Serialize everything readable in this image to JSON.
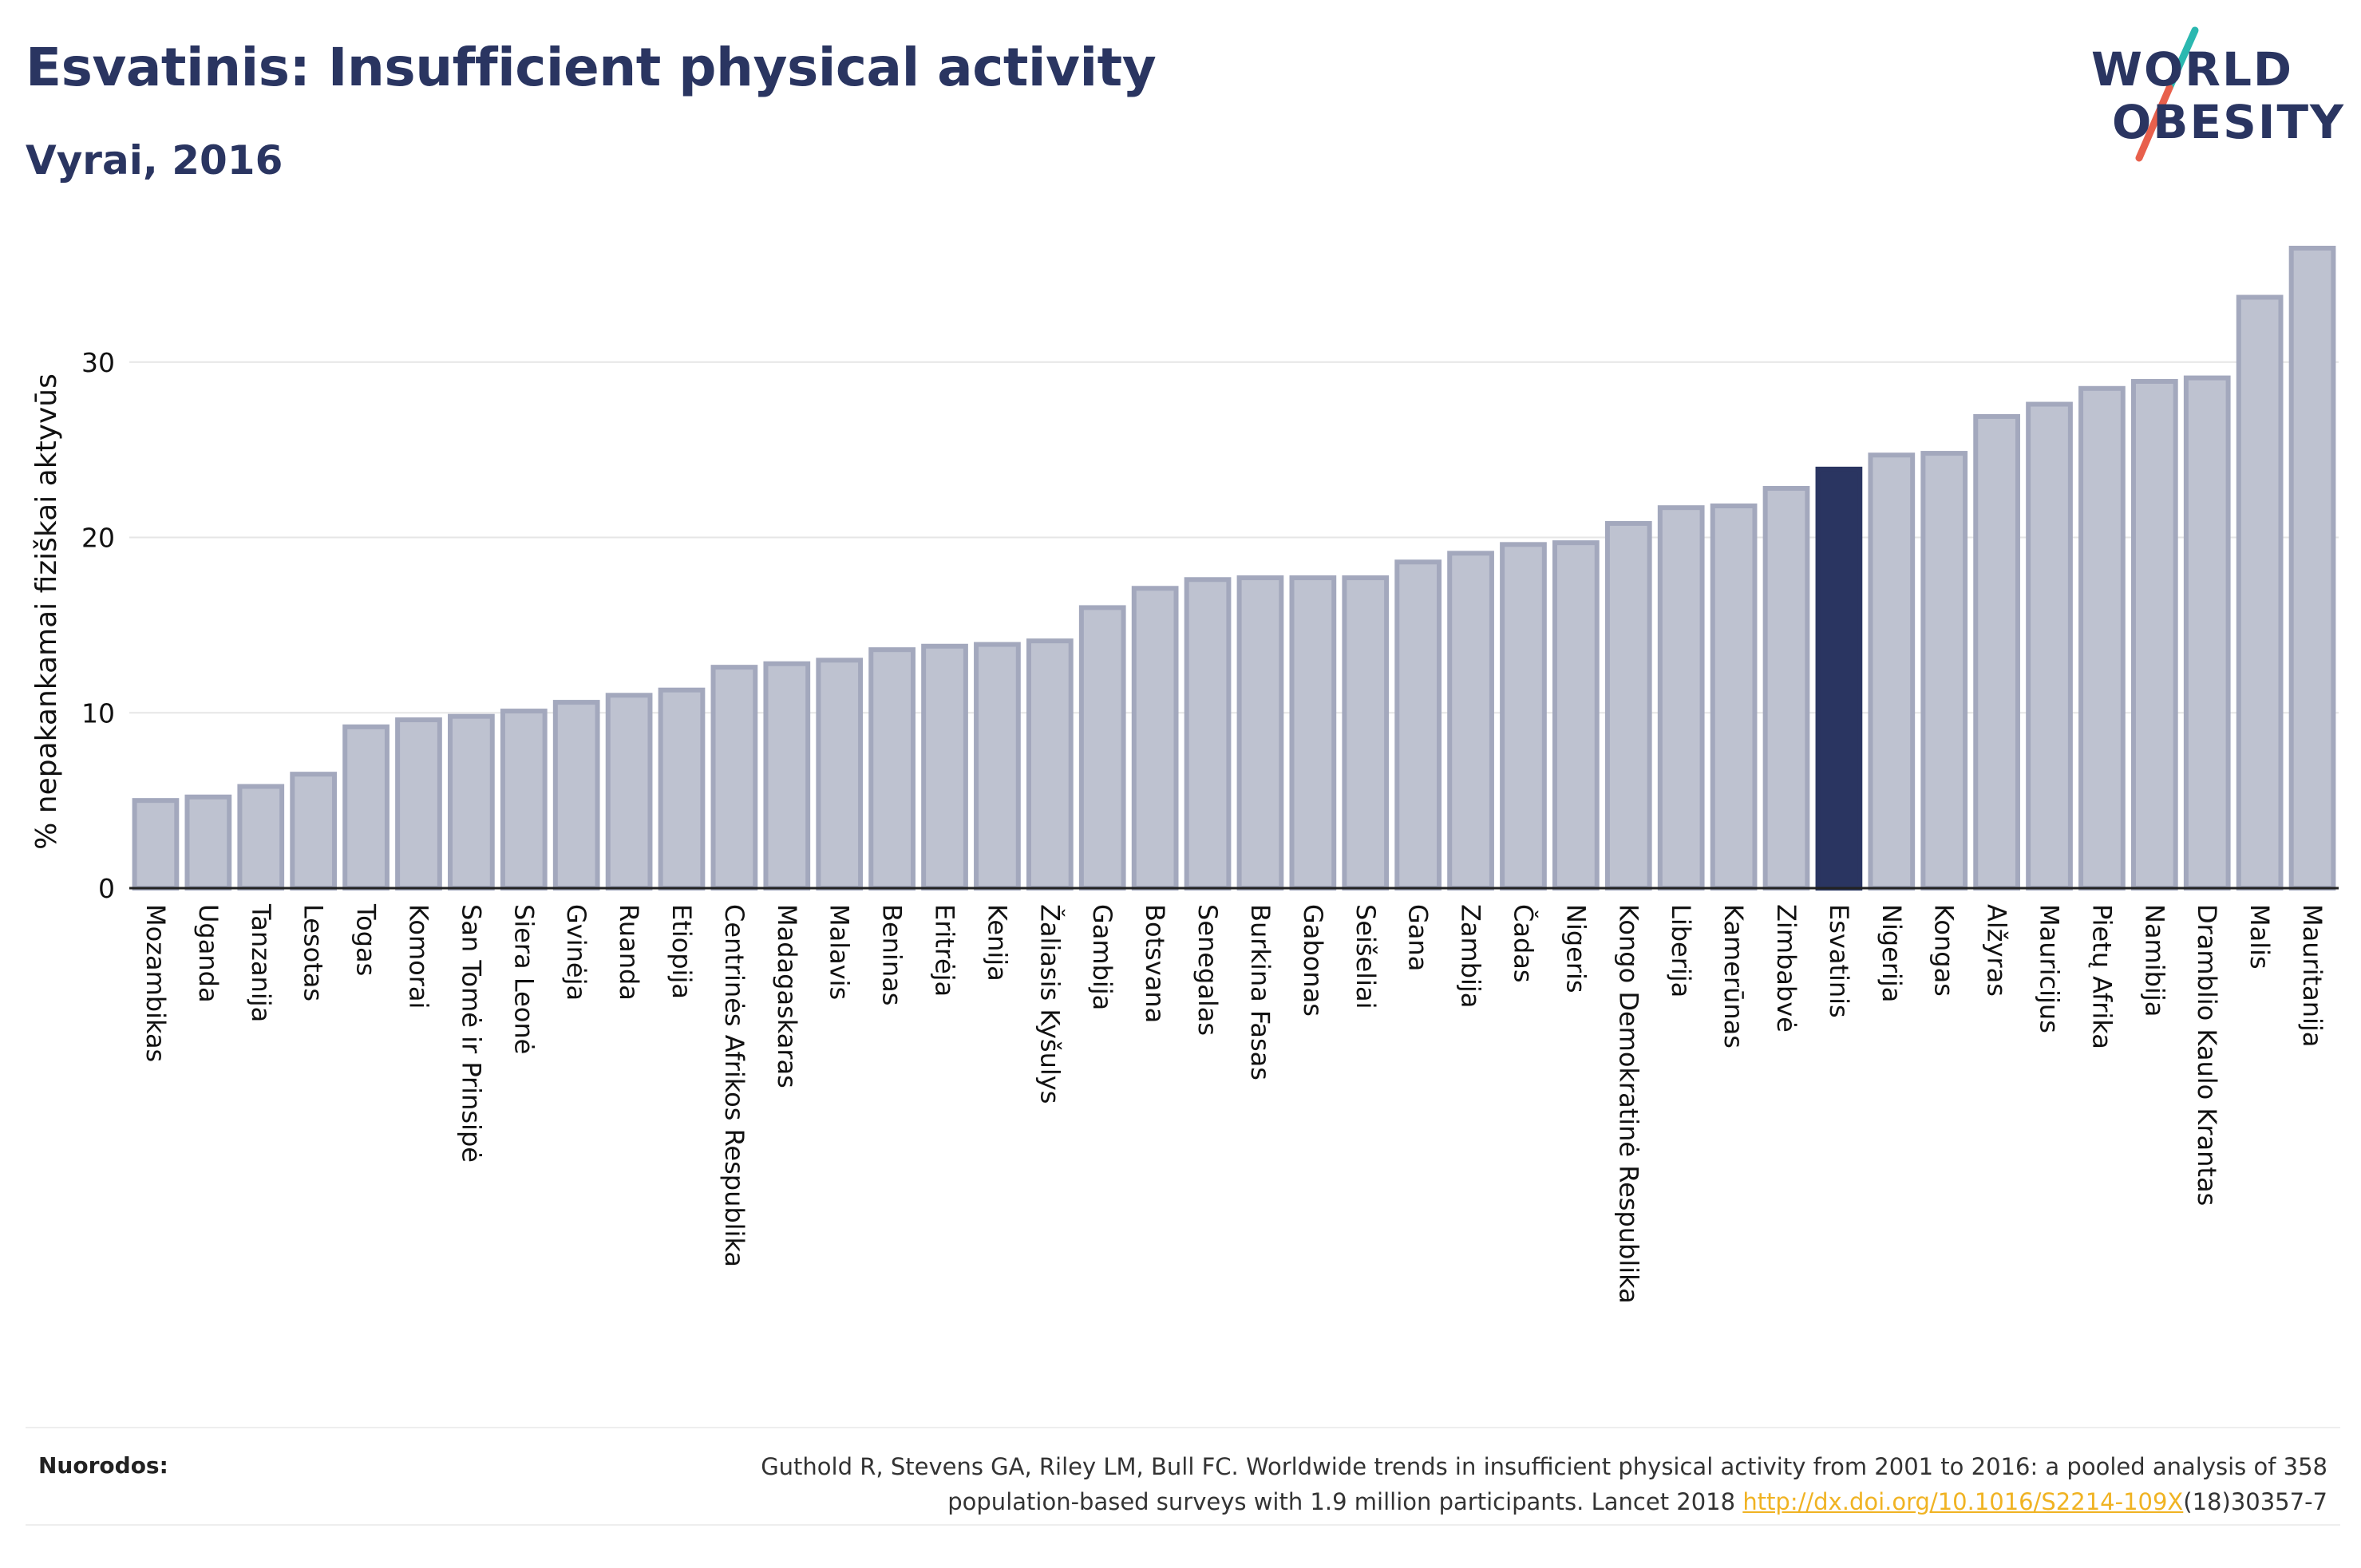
{
  "header": {
    "title": "Esvatinis: Insufficient physical activity",
    "subtitle": "Vyrai, 2016"
  },
  "logo": {
    "line1": "WORLD",
    "line2": "OBESITY",
    "slash_colors": [
      "#2bb8b0",
      "#e8604c"
    ]
  },
  "colors": {
    "bar_fill": "#bec2d0",
    "bar_stroke": "#a3a8bd",
    "highlight": "#2a3561",
    "grid": "#e6e6e6",
    "axis_text": "#111111"
  },
  "chart_data": {
    "type": "bar",
    "title": "Esvatinis: Insufficient physical activity",
    "subtitle": "Vyrai, 2016",
    "xlabel": "",
    "ylabel": "% nepakankamai fiziškai aktyvūs",
    "ylim": [
      0,
      37
    ],
    "yticks": [
      0,
      10,
      20,
      30
    ],
    "grid": true,
    "highlight": "Esvatinis",
    "categories": [
      "Mozambikas",
      "Uganda",
      "Tanzanija",
      "Lesotas",
      "Togas",
      "Komorai",
      "San Tomė ir Prinsipė",
      "Siera Leonė",
      "Gvinėja",
      "Ruanda",
      "Etiopija",
      "Centrinės Afrikos Respublika",
      "Madagaskaras",
      "Malavis",
      "Beninas",
      "Eritrėja",
      "Kenija",
      "Žaliasis Kyšulys",
      "Gambija",
      "Botsvana",
      "Senegalas",
      "Burkina Fasas",
      "Gabonas",
      "Seišeliai",
      "Gana",
      "Zambija",
      "Čadas",
      "Nigeris",
      "Kongo Demokratinė Respublika",
      "Liberija",
      "Kamerūnas",
      "Zimbabvė",
      "Esvatinis",
      "Nigerija",
      "Kongas",
      "Alžyras",
      "Mauricijus",
      "Pietų Afrika",
      "Namibija",
      "Dramblio Kaulo Krantas",
      "Malis",
      "Mauritanija"
    ],
    "values": [
      5.0,
      5.2,
      5.8,
      6.5,
      9.2,
      9.6,
      9.8,
      10.1,
      10.6,
      11.0,
      11.3,
      12.6,
      12.8,
      13.0,
      13.6,
      13.8,
      13.9,
      14.1,
      16.0,
      17.1,
      17.6,
      17.7,
      17.7,
      17.7,
      18.6,
      19.1,
      19.6,
      19.7,
      20.8,
      21.7,
      21.8,
      22.8,
      23.9,
      24.7,
      24.8,
      26.9,
      27.6,
      28.5,
      28.9,
      29.1,
      33.7,
      36.5
    ]
  },
  "references": {
    "label": "Nuorodos:",
    "text_line1": "Guthold R, Stevens GA, Riley LM, Bull FC. Worldwide trends in insufficient physical activity from 2001 to 2016: a pooled analysis of 358",
    "text_line2_prefix": "population-based surveys with 1.9 million participants. Lancet 2018 ",
    "link": "http://dx.doi.org/10.1016/S2214-109X",
    "text_line2_suffix": "(18)30357-7"
  }
}
